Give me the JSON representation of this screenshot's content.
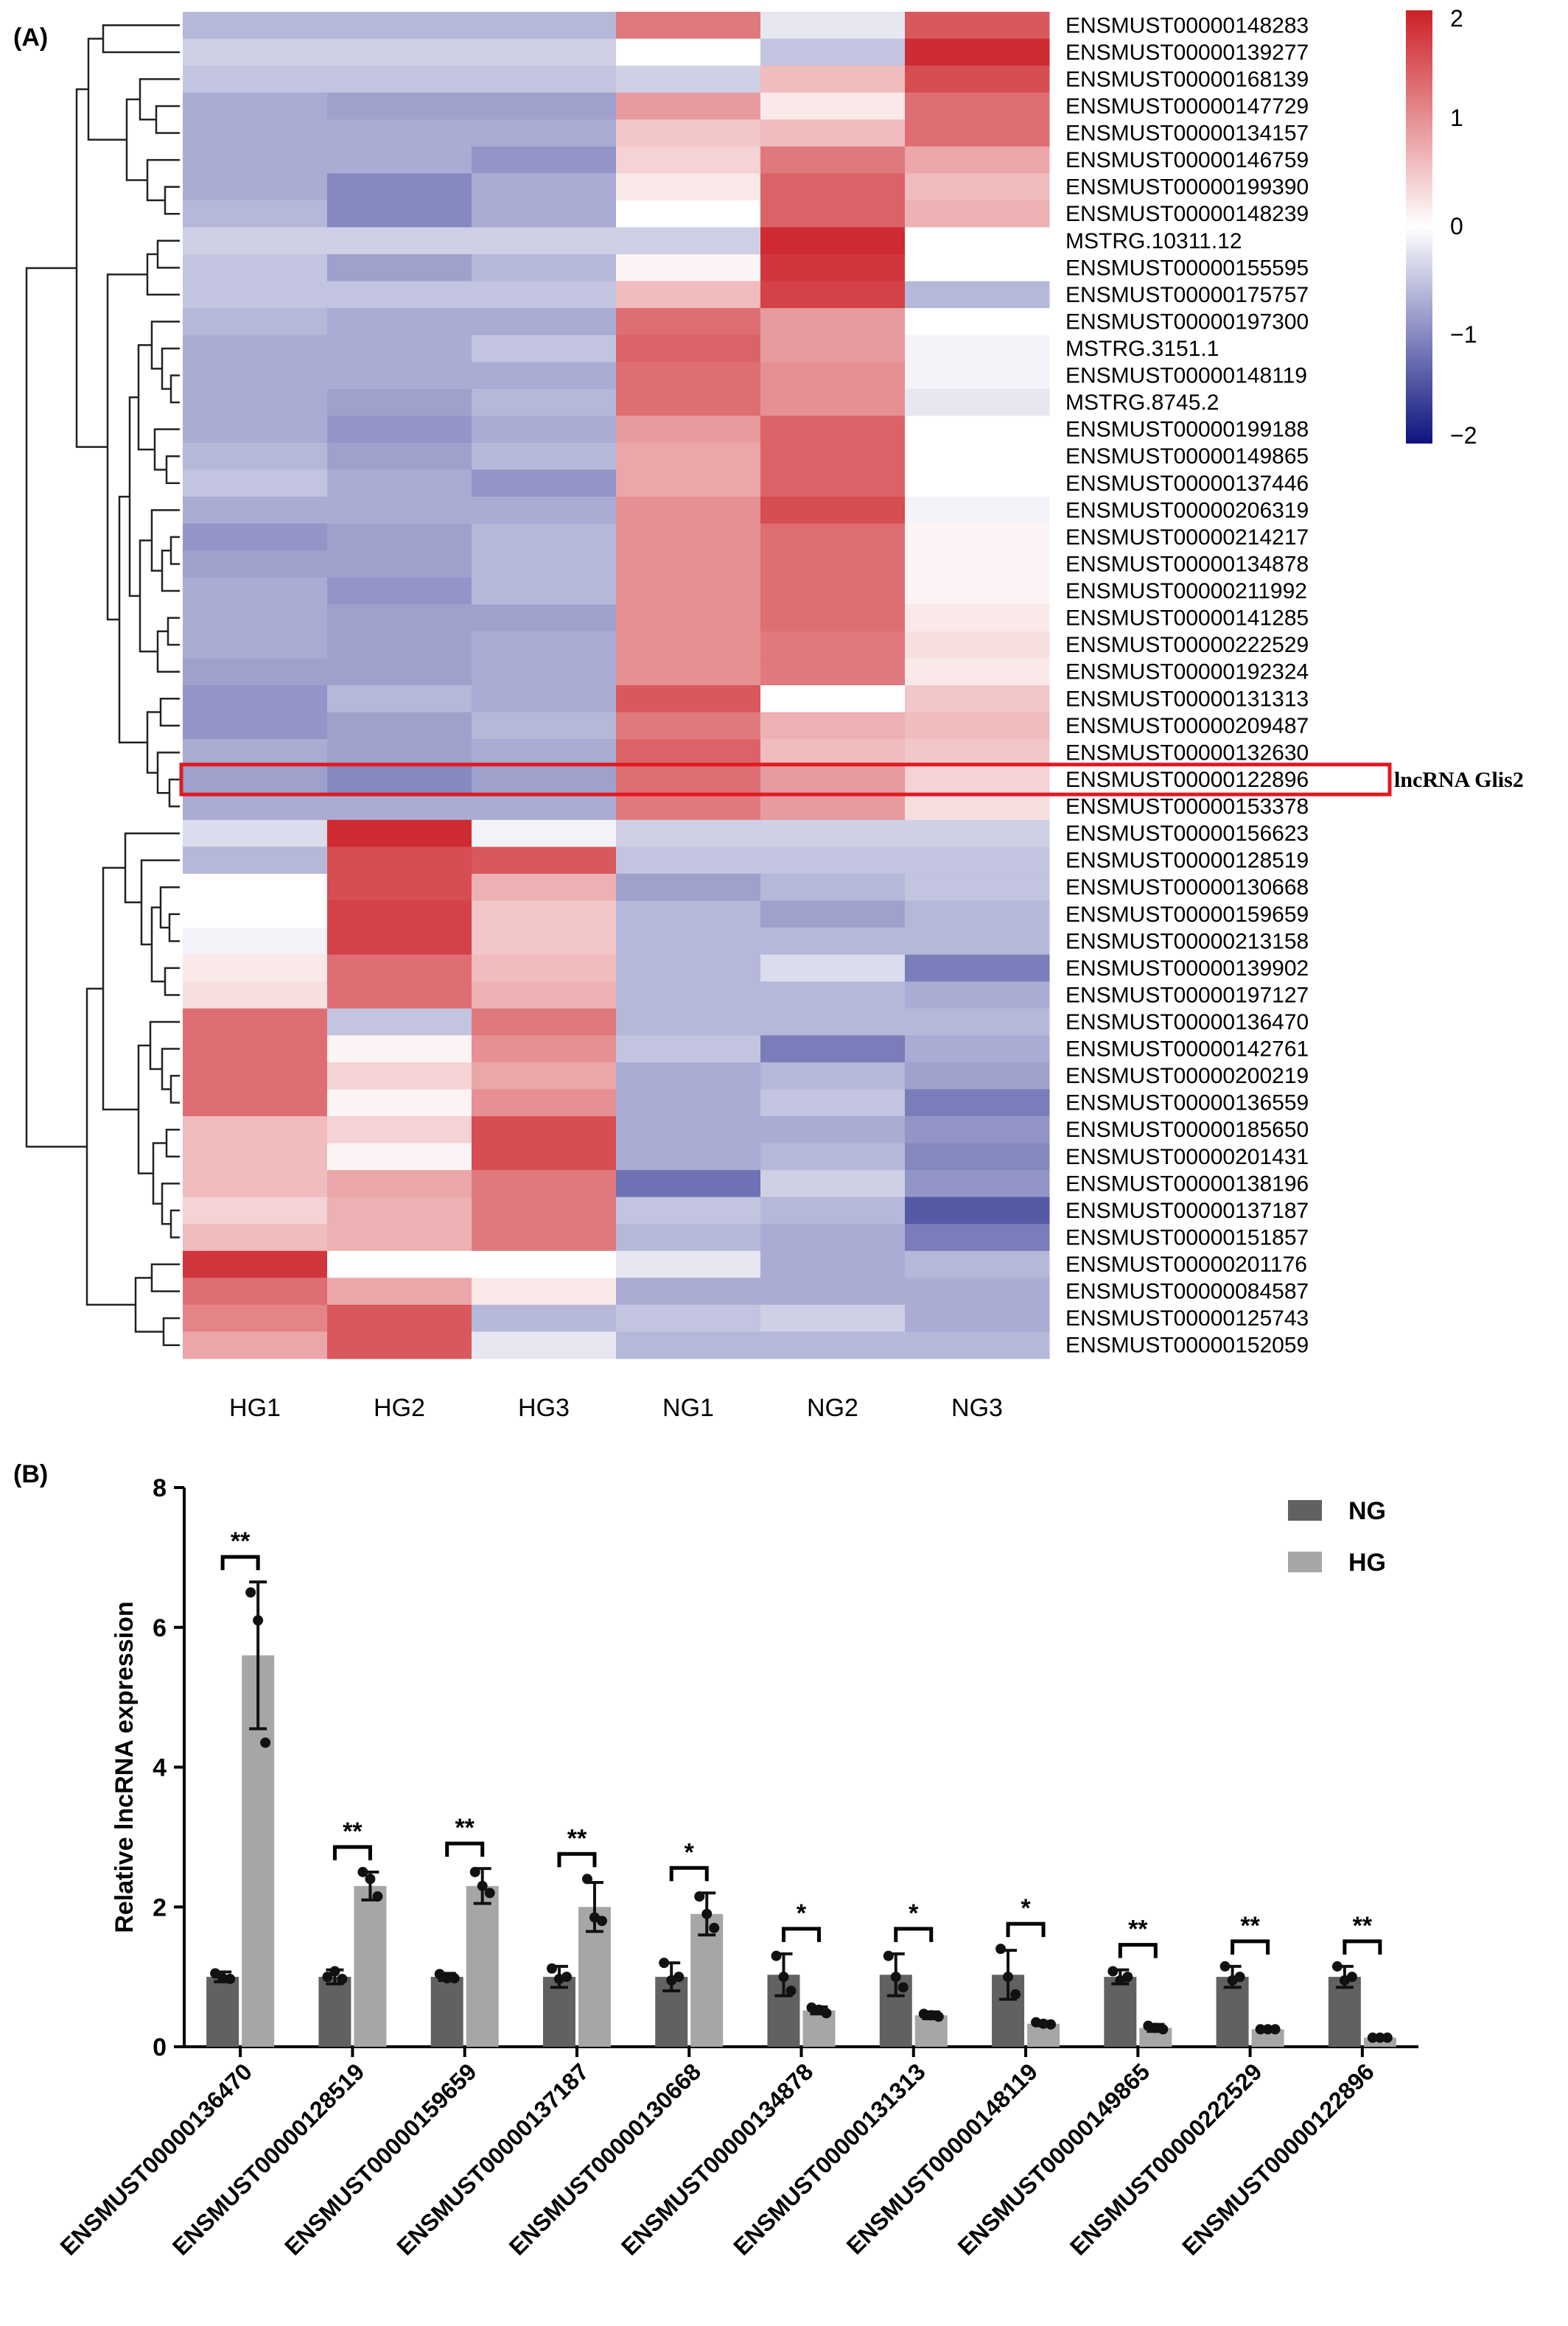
{
  "panel_a_label": "(A)",
  "panel_b_label": "(B)",
  "chart_data": [
    {
      "type": "heatmap",
      "columns": [
        "HG1",
        "HG2",
        "HG3",
        "NG1",
        "NG2",
        "NG3"
      ],
      "rows": [
        "ENSMUST00000148283",
        "ENSMUST00000139277",
        "ENSMUST00000168139",
        "ENSMUST00000147729",
        "ENSMUST00000134157",
        "ENSMUST00000146759",
        "ENSMUST00000199390",
        "ENSMUST00000148239",
        "MSTRG.10311.12",
        "ENSMUST00000155595",
        "ENSMUST00000175757",
        "ENSMUST00000197300",
        "MSTRG.3151.1",
        "ENSMUST00000148119",
        "MSTRG.8745.2",
        "ENSMUST00000199188",
        "ENSMUST00000149865",
        "ENSMUST00000137446",
        "ENSMUST00000206319",
        "ENSMUST00000214217",
        "ENSMUST00000134878",
        "ENSMUST00000211992",
        "ENSMUST00000141285",
        "ENSMUST00000222529",
        "ENSMUST00000192324",
        "ENSMUST00000131313",
        "ENSMUST00000209487",
        "ENSMUST00000132630",
        "ENSMUST00000122896",
        "ENSMUST00000153378",
        "ENSMUST00000156623",
        "ENSMUST00000128519",
        "ENSMUST00000130668",
        "ENSMUST00000159659",
        "ENSMUST00000213158",
        "ENSMUST00000139902",
        "ENSMUST00000197127",
        "ENSMUST00000136470",
        "ENSMUST00000142761",
        "ENSMUST00000200219",
        "ENSMUST00000136559",
        "ENSMUST00000185650",
        "ENSMUST00000201431",
        "ENSMUST00000138196",
        "ENSMUST00000137187",
        "ENSMUST00000151857",
        "ENSMUST00000201176",
        "ENSMUST00000084587",
        "ENSMUST00000125743",
        "ENSMUST00000152059"
      ],
      "values": [
        [
          -0.6,
          -0.6,
          -0.6,
          1.2,
          -0.2,
          1.5
        ],
        [
          -0.4,
          -0.4,
          -0.4,
          0.0,
          -0.5,
          1.9
        ],
        [
          -0.5,
          -0.5,
          -0.5,
          -0.4,
          0.6,
          1.6
        ],
        [
          -0.7,
          -0.8,
          -0.8,
          0.9,
          0.2,
          1.3
        ],
        [
          -0.7,
          -0.7,
          -0.7,
          0.5,
          0.6,
          1.3
        ],
        [
          -0.7,
          -0.7,
          -0.9,
          0.4,
          1.2,
          0.8
        ],
        [
          -0.7,
          -1.0,
          -0.7,
          0.2,
          1.4,
          0.6
        ],
        [
          -0.6,
          -1.0,
          -0.7,
          0.0,
          1.4,
          0.7
        ],
        [
          -0.4,
          -0.4,
          -0.4,
          -0.4,
          1.9,
          0.0
        ],
        [
          -0.5,
          -0.8,
          -0.6,
          0.1,
          1.8,
          0.0
        ],
        [
          -0.5,
          -0.5,
          -0.5,
          0.6,
          1.7,
          -0.6
        ],
        [
          -0.6,
          -0.7,
          -0.7,
          1.3,
          0.9,
          0.0
        ],
        [
          -0.7,
          -0.7,
          -0.5,
          1.4,
          0.9,
          -0.1
        ],
        [
          -0.7,
          -0.7,
          -0.7,
          1.3,
          1.0,
          -0.1
        ],
        [
          -0.7,
          -0.8,
          -0.6,
          1.3,
          1.0,
          -0.2
        ],
        [
          -0.7,
          -0.9,
          -0.7,
          0.9,
          1.4,
          0.0
        ],
        [
          -0.6,
          -0.8,
          -0.6,
          0.8,
          1.4,
          0.0
        ],
        [
          -0.5,
          -0.7,
          -0.9,
          0.8,
          1.4,
          0.0
        ],
        [
          -0.7,
          -0.7,
          -0.7,
          1.0,
          1.6,
          -0.1
        ],
        [
          -0.9,
          -0.8,
          -0.6,
          1.0,
          1.3,
          0.1
        ],
        [
          -0.8,
          -0.8,
          -0.6,
          1.0,
          1.3,
          0.1
        ],
        [
          -0.7,
          -0.9,
          -0.6,
          1.0,
          1.3,
          0.1
        ],
        [
          -0.7,
          -0.8,
          -0.8,
          1.0,
          1.3,
          0.2
        ],
        [
          -0.7,
          -0.8,
          -0.7,
          1.0,
          1.2,
          0.3
        ],
        [
          -0.8,
          -0.8,
          -0.7,
          1.0,
          1.2,
          0.2
        ],
        [
          -0.9,
          -0.6,
          -0.7,
          1.5,
          0.0,
          0.5
        ],
        [
          -0.9,
          -0.8,
          -0.6,
          1.2,
          0.7,
          0.6
        ],
        [
          -0.7,
          -0.8,
          -0.7,
          1.4,
          0.6,
          0.5
        ],
        [
          -0.8,
          -1.0,
          -0.8,
          1.3,
          0.9,
          0.4
        ],
        [
          -0.7,
          -0.7,
          -0.7,
          1.2,
          0.9,
          0.3
        ],
        [
          -0.3,
          1.9,
          -0.1,
          -0.4,
          -0.4,
          -0.4
        ],
        [
          -0.6,
          1.6,
          1.5,
          -0.5,
          -0.5,
          -0.5
        ],
        [
          0.0,
          1.6,
          0.7,
          -0.8,
          -0.6,
          -0.5
        ],
        [
          0.0,
          1.7,
          0.5,
          -0.6,
          -0.8,
          -0.6
        ],
        [
          -0.1,
          1.7,
          0.5,
          -0.6,
          -0.6,
          -0.6
        ],
        [
          0.2,
          1.3,
          0.6,
          -0.6,
          -0.3,
          -1.1
        ],
        [
          0.3,
          1.3,
          0.7,
          -0.6,
          -0.6,
          -0.7
        ],
        [
          1.3,
          -0.5,
          1.2,
          -0.6,
          -0.6,
          -0.6
        ],
        [
          1.3,
          0.1,
          1.0,
          -0.5,
          -1.1,
          -0.7
        ],
        [
          1.3,
          0.4,
          0.8,
          -0.7,
          -0.6,
          -0.8
        ],
        [
          1.3,
          0.1,
          1.0,
          -0.7,
          -0.5,
          -1.1
        ],
        [
          0.6,
          0.4,
          1.6,
          -0.7,
          -0.7,
          -0.9
        ],
        [
          0.6,
          0.1,
          1.6,
          -0.7,
          -0.6,
          -1.0
        ],
        [
          0.6,
          0.8,
          1.2,
          -1.2,
          -0.4,
          -0.9
        ],
        [
          0.4,
          0.7,
          1.2,
          -0.5,
          -0.6,
          -1.4
        ],
        [
          0.6,
          0.7,
          1.2,
          -0.6,
          -0.7,
          -1.1
        ],
        [
          1.8,
          0.0,
          0.0,
          -0.2,
          -0.7,
          -0.6
        ],
        [
          1.3,
          0.8,
          0.2,
          -0.7,
          -0.7,
          -0.7
        ],
        [
          1.1,
          1.5,
          -0.6,
          -0.5,
          -0.4,
          -0.7
        ],
        [
          0.8,
          1.5,
          -0.2,
          -0.6,
          -0.6,
          -0.6
        ]
      ],
      "colorbar": {
        "ticks": [
          "2",
          "1",
          "0",
          "−1",
          "−2"
        ],
        "low": "#0d1380",
        "mid": "#ffffff",
        "high": "#cc2027"
      },
      "highlight": {
        "row": "ENSMUST00000122896",
        "label": "lncRNA Glis2",
        "color": "#e11a22"
      }
    },
    {
      "type": "bar",
      "ylabel": "Relative lncRNA expression",
      "ylim": [
        0,
        8
      ],
      "yticks": [
        "0",
        "2",
        "4",
        "6",
        "8"
      ],
      "categories": [
        "ENSMUST00000136470",
        "ENSMUST00000128519",
        "ENSMUST00000159659",
        "ENSMUST00000137187",
        "ENSMUST00000130668",
        "ENSMUST00000134878",
        "ENSMUST00000131313",
        "ENSMUST00000148119",
        "ENSMUST00000149865",
        "ENSMUST00000222529",
        "ENSMUST00000122896"
      ],
      "series": [
        {
          "name": "NG",
          "color": "#616161",
          "values": [
            1.0,
            1.0,
            1.0,
            1.0,
            1.0,
            1.03,
            1.03,
            1.03,
            1.0,
            1.0,
            1.0
          ],
          "errors": [
            0.07,
            0.1,
            0.05,
            0.15,
            0.2,
            0.3,
            0.3,
            0.35,
            0.1,
            0.15,
            0.15
          ],
          "points": [
            [
              1.05,
              0.98,
              0.97
            ],
            [
              1.0,
              1.08,
              0.97
            ],
            [
              1.04,
              0.98,
              0.98
            ],
            [
              1.12,
              0.97,
              1.0
            ],
            [
              1.2,
              0.95,
              1.0
            ],
            [
              1.3,
              1.0,
              0.8
            ],
            [
              1.3,
              1.0,
              0.85
            ],
            [
              1.4,
              1.0,
              0.75
            ],
            [
              1.08,
              0.95,
              1.0
            ],
            [
              1.15,
              0.95,
              1.0
            ],
            [
              1.15,
              0.95,
              1.0
            ]
          ]
        },
        {
          "name": "HG",
          "color": "#a6a6a6",
          "values": [
            5.6,
            2.3,
            2.3,
            2.0,
            1.9,
            0.52,
            0.45,
            0.33,
            0.27,
            0.25,
            0.13
          ],
          "errors": [
            1.05,
            0.2,
            0.25,
            0.35,
            0.3,
            0.05,
            0.05,
            0.03,
            0.05,
            0.02,
            0.02
          ],
          "points": [
            [
              6.5,
              6.1,
              4.35
            ],
            [
              2.5,
              2.4,
              2.15
            ],
            [
              2.5,
              2.3,
              2.2
            ],
            [
              2.4,
              1.85,
              1.8
            ],
            [
              2.15,
              1.9,
              1.7
            ],
            [
              0.56,
              0.53,
              0.48
            ],
            [
              0.47,
              0.45,
              0.43
            ],
            [
              0.35,
              0.33,
              0.32
            ],
            [
              0.3,
              0.27,
              0.25
            ],
            [
              0.25,
              0.25,
              0.25
            ],
            [
              0.13,
              0.13,
              0.13
            ]
          ]
        }
      ],
      "significance": [
        "**",
        "**",
        "**",
        "**",
        "*",
        "*",
        "*",
        "*",
        "**",
        "**",
        "**"
      ]
    }
  ]
}
